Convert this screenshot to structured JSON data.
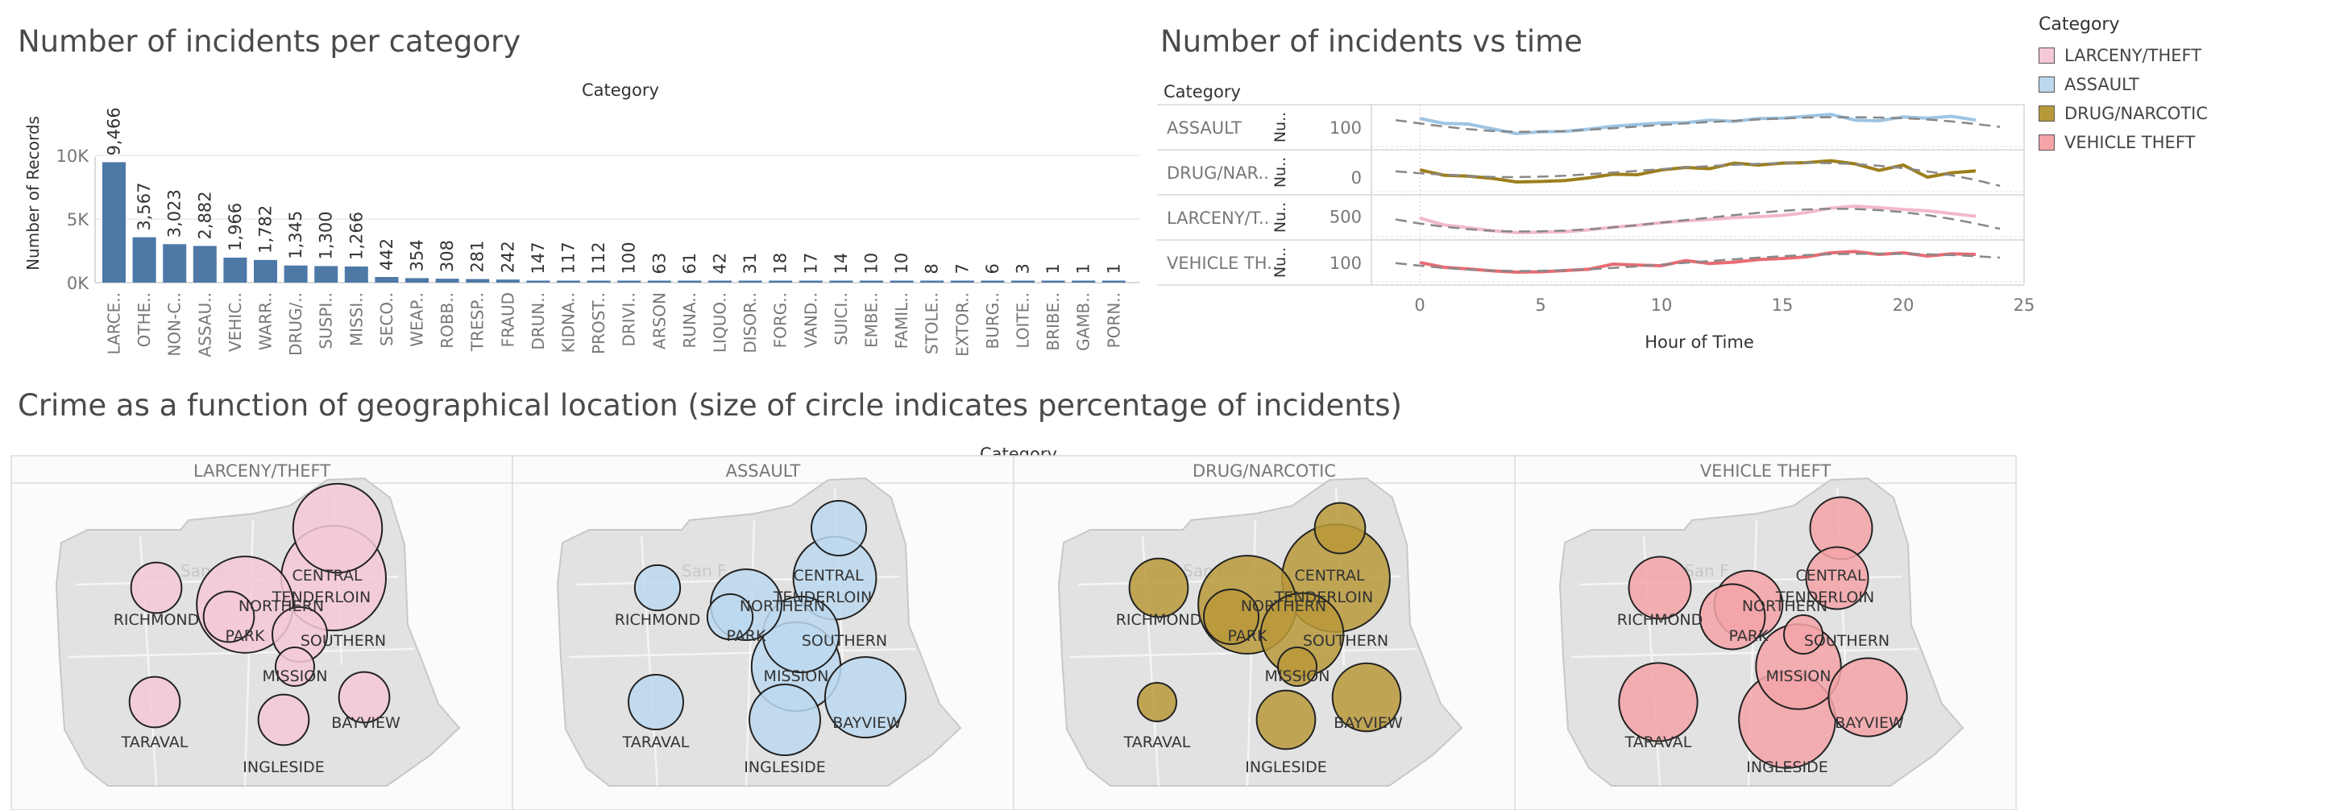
{
  "titles": {
    "bar_chart": "Number of incidents per category",
    "time_chart": "Number of incidents vs time",
    "map_section": "Crime as a function of geographical location (size of circle indicates percentage of incidents)"
  },
  "legend": {
    "title": "Category",
    "items": [
      {
        "label": "LARCENY/THEFT",
        "color": "#f5c8d8"
      },
      {
        "label": "ASSAULT",
        "color": "#bcd8ef"
      },
      {
        "label": "DRUG/NARCOTIC",
        "color": "#b8993a"
      },
      {
        "label": "VEHICLE THEFT",
        "color": "#f5a3a8"
      }
    ]
  },
  "chart_data": [
    {
      "type": "bar",
      "title": "Number of incidents per category",
      "header": "Category",
      "ylabel": "Number of Records",
      "yticks": [
        "10K",
        "5K",
        "0K"
      ],
      "ytick_values": [
        10000,
        5000,
        0
      ],
      "ylim": [
        0,
        11500
      ],
      "bar_color": "#4e79a7",
      "categories": [
        "LARCE..",
        "OTHE..",
        "NON-C..",
        "ASSAU..",
        "VEHIC..",
        "WARR..",
        "DRUG/..",
        "SUSPI..",
        "MISSI..",
        "SECO..",
        "WEAP..",
        "ROBB..",
        "TRESP..",
        "FRAUD",
        "DRUN..",
        "KIDNA..",
        "PROST..",
        "DRIVI..",
        "ARSON",
        "RUNA..",
        "LIQUO..",
        "DISOR..",
        "FORG..",
        "VAND..",
        "SUICI..",
        "EMBE..",
        "FAMIL..",
        "STOLE..",
        "EXTOR..",
        "BURG..",
        "LOITE..",
        "BRIBE..",
        "GAMB..",
        "PORN.."
      ],
      "values": [
        9466,
        3567,
        3023,
        2882,
        1966,
        1782,
        1345,
        1300,
        1266,
        442,
        354,
        308,
        281,
        242,
        147,
        117,
        112,
        100,
        63,
        61,
        42,
        31,
        18,
        17,
        14,
        10,
        10,
        8,
        7,
        6,
        3,
        1,
        1,
        1
      ],
      "labels": [
        "9,466",
        "3,567",
        "3,023",
        "2,882",
        "1,966",
        "1,782",
        "1,345",
        "1,300",
        "1,266",
        "442",
        "354",
        "308",
        "281",
        "242",
        "147",
        "117",
        "112",
        "100",
        "63",
        "61",
        "42",
        "31",
        "18",
        "17",
        "14",
        "10",
        "10",
        "8",
        "7",
        "6",
        "3",
        "1",
        "1",
        "1"
      ]
    },
    {
      "type": "line",
      "title": "Number of incidents vs time",
      "row_header": "Category",
      "xlabel": "Hour of Time",
      "xticks": [
        0,
        5,
        10,
        15,
        20,
        25
      ],
      "xlim": [
        -2,
        25
      ],
      "series_axis_label": "Nu..",
      "series": [
        {
          "name": "ASSAULT",
          "row_label": "ASSAULT",
          "color": "#9dc4e3",
          "ytick": "100",
          "ytick_value": 100,
          "ylim": [
            40,
            160
          ],
          "values": [
            127,
            112,
            110,
            95,
            80,
            86,
            87,
            94,
            103,
            108,
            113,
            114,
            122,
            118,
            127,
            128,
            134,
            140,
            122,
            120,
            132,
            128,
            134,
            122
          ],
          "trend": [
            122,
            112,
            102,
            94,
            88,
            86,
            86,
            88,
            92,
            97,
            102,
            107,
            112,
            116,
            120,
            124,
            127,
            130,
            131,
            131,
            130,
            128,
            124,
            118,
            110,
            101
          ]
        },
        {
          "name": "DRUG/NARCOTIC",
          "row_label": "DRUG/NAR..",
          "color": "#9c7e1c",
          "ytick": "0",
          "ytick_value": 0,
          "ylim": [
            -60,
            100
          ],
          "values": [
            30,
            8,
            4,
            -5,
            -20,
            -18,
            -14,
            -3,
            12,
            10,
            30,
            40,
            35,
            58,
            50,
            58,
            60,
            68,
            55,
            28,
            50,
            0,
            18,
            26
          ],
          "trend": [
            24,
            16,
            10,
            5,
            1,
            0,
            2,
            6,
            12,
            19,
            26,
            33,
            40,
            46,
            51,
            55,
            58,
            59,
            58,
            54,
            47,
            37,
            24,
            8,
            -12,
            -36
          ]
        },
        {
          "name": "LARCENY/THEFT",
          "row_label": "LARCENY/T..",
          "color": "#f2b8cb",
          "ytick": "500",
          "ytick_value": 500,
          "ylim": [
            50,
            900
          ],
          "values": [
            460,
            310,
            250,
            180,
            140,
            150,
            160,
            200,
            260,
            300,
            360,
            400,
            430,
            470,
            490,
            520,
            580,
            680,
            720,
            690,
            650,
            620,
            560,
            500
          ],
          "trend": [
            430,
            340,
            270,
            215,
            180,
            165,
            168,
            185,
            215,
            255,
            305,
            360,
            415,
            470,
            525,
            575,
            620,
            650,
            665,
            660,
            635,
            590,
            525,
            440,
            340,
            225
          ]
        },
        {
          "name": "VEHICLE THEFT",
          "row_label": "VEHICLE TH..",
          "color": "#e86b73",
          "ytick": "100",
          "ytick_value": 100,
          "ylim": [
            -20,
            220
          ],
          "values": [
            100,
            70,
            60,
            48,
            40,
            42,
            50,
            58,
            90,
            84,
            80,
            112,
            94,
            102,
            118,
            125,
            135,
            160,
            168,
            150,
            160,
            140,
            154,
            150
          ],
          "trend": [
            96,
            80,
            66,
            56,
            50,
            47,
            48,
            52,
            58,
            66,
            76,
            87,
            98,
            109,
            120,
            130,
            139,
            146,
            151,
            154,
            155,
            154,
            151,
            146,
            139,
            130
          ]
        }
      ]
    }
  ],
  "maps": {
    "header": "Category",
    "watermark": "San F",
    "districts": [
      "RICHMOND",
      "CENTRAL",
      "TENDERLOIN",
      "NORTHERN",
      "PARK",
      "SOUTHERN",
      "MISSION",
      "TARAVAL",
      "INGLESIDE",
      "BAYVIEW"
    ],
    "panels": [
      {
        "title": "LARCENY/THEFT",
        "color": "#f5c8d8",
        "circles": [
          {
            "district": "CENTRAL",
            "pct": 17
          },
          {
            "district": "TENDERLOIN",
            "pct": 26
          },
          {
            "district": "NORTHERN",
            "pct": 21
          },
          {
            "district": "RICHMOND",
            "pct": 3
          },
          {
            "district": "PARK",
            "pct": 3
          },
          {
            "district": "SOUTHERN",
            "pct": 4
          },
          {
            "district": "MISSION",
            "pct": 1
          },
          {
            "district": "TARAVAL",
            "pct": 3
          },
          {
            "district": "INGLESIDE",
            "pct": 3
          },
          {
            "district": "BAYVIEW",
            "pct": 3
          }
        ]
      },
      {
        "title": "ASSAULT",
        "color": "#bcd8ef",
        "circles": [
          {
            "district": "CENTRAL",
            "pct": 4
          },
          {
            "district": "TENDERLOIN",
            "pct": 14
          },
          {
            "district": "NORTHERN",
            "pct": 9
          },
          {
            "district": "RICHMOND",
            "pct": 2
          },
          {
            "district": "PARK",
            "pct": 2
          },
          {
            "district": "SOUTHERN",
            "pct": 11
          },
          {
            "district": "MISSION",
            "pct": 17
          },
          {
            "district": "TARAVAL",
            "pct": 4
          },
          {
            "district": "INGLESIDE",
            "pct": 9
          },
          {
            "district": "BAYVIEW",
            "pct": 13
          }
        ]
      },
      {
        "title": "DRUG/NARCOTIC",
        "color": "#b8993a",
        "circles": [
          {
            "district": "CENTRAL",
            "pct": 3
          },
          {
            "district": "TENDERLOIN",
            "pct": 28
          },
          {
            "district": "NORTHERN",
            "pct": 22
          },
          {
            "district": "RICHMOND",
            "pct": 5
          },
          {
            "district": "PARK",
            "pct": 4
          },
          {
            "district": "SOUTHERN",
            "pct": 14
          },
          {
            "district": "MISSION",
            "pct": 1
          },
          {
            "district": "TARAVAL",
            "pct": 1
          },
          {
            "district": "INGLESIDE",
            "pct": 5
          },
          {
            "district": "BAYVIEW",
            "pct": 8
          }
        ]
      },
      {
        "title": "VEHICLE THEFT",
        "color": "#f5a3a8",
        "circles": [
          {
            "district": "CENTRAL",
            "pct": 6
          },
          {
            "district": "TENDERLOIN",
            "pct": 6
          },
          {
            "district": "NORTHERN",
            "pct": 8
          },
          {
            "district": "RICHMOND",
            "pct": 6
          },
          {
            "district": "PARK",
            "pct": 7
          },
          {
            "district": "SOUTHERN",
            "pct": 1
          },
          {
            "district": "MISSION",
            "pct": 15
          },
          {
            "district": "TARAVAL",
            "pct": 12
          },
          {
            "district": "INGLESIDE",
            "pct": 21
          },
          {
            "district": "BAYVIEW",
            "pct": 12
          }
        ]
      }
    ]
  }
}
